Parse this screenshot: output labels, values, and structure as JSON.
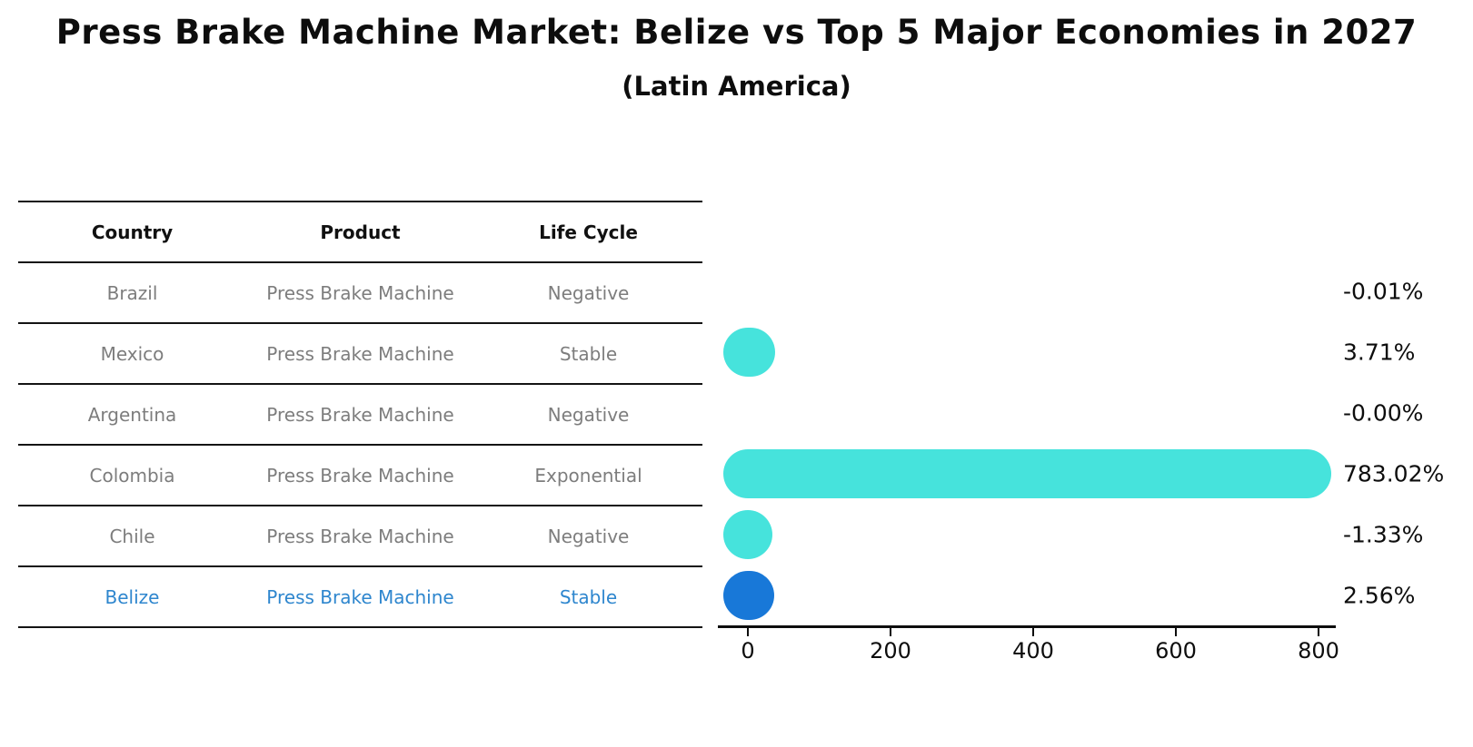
{
  "title": "Press Brake Machine Market: Belize vs Top 5 Major Economies in 2027",
  "subtitle": "(Latin America)",
  "table": {
    "headers": [
      "Country",
      "Product",
      "Life Cycle"
    ],
    "rows": [
      {
        "country": "Brazil",
        "product": "Press Brake Machine",
        "life_cycle": "Negative",
        "highlight": false
      },
      {
        "country": "Mexico",
        "product": "Press Brake Machine",
        "life_cycle": "Stable",
        "highlight": false
      },
      {
        "country": "Argentina",
        "product": "Press Brake Machine",
        "life_cycle": "Negative",
        "highlight": false
      },
      {
        "country": "Colombia",
        "product": "Press Brake Machine",
        "life_cycle": "Exponential",
        "highlight": false
      },
      {
        "country": "Chile",
        "product": "Press Brake Machine",
        "life_cycle": "Negative",
        "highlight": true
      },
      {
        "country": "Belize",
        "product": "Press Brake Machine",
        "life_cycle": "Stable",
        "highlight": true
      }
    ]
  },
  "chart_data": {
    "type": "bar",
    "orientation": "horizontal",
    "categories": [
      "Brazil",
      "Mexico",
      "Argentina",
      "Colombia",
      "Chile",
      "Belize"
    ],
    "values": [
      -0.01,
      3.71,
      0.0,
      783.02,
      -1.33,
      2.56
    ],
    "value_labels": [
      "-0.01%",
      "3.71%",
      "-0.00%",
      "783.02%",
      "-1.33%",
      "2.56%"
    ],
    "bar_visible": [
      false,
      true,
      false,
      true,
      true,
      true
    ],
    "bar_is_highlight": [
      false,
      false,
      false,
      false,
      false,
      true
    ],
    "xticks": [
      0,
      200,
      400,
      600,
      800
    ],
    "xtick_labels": [
      "0",
      "200",
      "400",
      "600",
      "800"
    ],
    "xlim": [
      -42,
      825
    ],
    "grid": false,
    "legend": false,
    "bar_style": "rounded-capsule"
  },
  "colors": {
    "bar_default": "#46e3dc",
    "bar_highlight": "#1878d8",
    "highlight_text": "#2e86ce",
    "axis": "#0d0d0d",
    "cell_text": "#7d7d7d"
  }
}
